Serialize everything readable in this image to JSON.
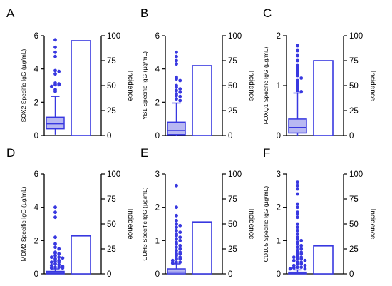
{
  "colors": {
    "accent": "#3838e0",
    "box_fill": "#b8b8f2",
    "axis": "#000000"
  },
  "chart_data": [
    {
      "type": "box-bar",
      "panel": "A",
      "ylabel": "SOX2 Specific IgG (µg/mL)",
      "y2label": "Incidence",
      "ylim": [
        0,
        6
      ],
      "yticks": [
        0,
        2,
        4,
        6
      ],
      "y2lim": [
        0,
        100
      ],
      "y2ticks": [
        0,
        25,
        50,
        75,
        100
      ],
      "box": {
        "min": 0.05,
        "q1": 0.4,
        "median": 0.7,
        "q3": 1.1,
        "max": 2.35
      },
      "outliers": [
        5.75,
        5.3,
        5.0,
        4.75,
        3.9,
        3.85,
        3.7,
        3.15,
        3.1,
        3.05,
        3.05,
        2.95,
        2.75,
        2.65
      ],
      "incidence": 95
    },
    {
      "type": "box-bar",
      "panel": "B",
      "ylabel": "YB1 Specific IgG (µg/mL)",
      "y2label": "Incidence",
      "ylim": [
        0,
        6
      ],
      "yticks": [
        0,
        2,
        4,
        6
      ],
      "y2lim": [
        0,
        100
      ],
      "y2ticks": [
        0,
        25,
        50,
        75,
        100
      ],
      "box": {
        "min": 0.0,
        "q1": 0.05,
        "median": 0.3,
        "q3": 0.8,
        "max": 1.95
      },
      "outliers": [
        5.0,
        4.75,
        4.5,
        4.3,
        3.5,
        3.4,
        3.3,
        3.0,
        2.9,
        2.8,
        2.7,
        2.6,
        2.5,
        2.4,
        2.35,
        2.2,
        2.1
      ],
      "incidence": 70
    },
    {
      "type": "box-bar",
      "panel": "C",
      "ylabel": "FOXQ1 Specific IgG (µg/mL)",
      "y2label": "Incidence",
      "ylim": [
        0,
        2
      ],
      "yticks": [
        0,
        1,
        2
      ],
      "y2lim": [
        0,
        100
      ],
      "y2ticks": [
        0,
        25,
        50,
        75,
        100
      ],
      "box": {
        "min": 0.0,
        "q1": 0.05,
        "median": 0.16,
        "q3": 0.33,
        "max": 0.85
      },
      "outliers": [
        1.8,
        1.7,
        1.6,
        1.5,
        1.4,
        1.35,
        1.3,
        1.25,
        1.2,
        1.15,
        1.1,
        1.05,
        1.0,
        0.95,
        0.9,
        0.88
      ],
      "incidence": 75
    },
    {
      "type": "box-bar",
      "panel": "D",
      "ylabel": "MDM2 Specific IgG (µg/mL)",
      "y2label": "Incidence",
      "ylim": [
        0,
        6
      ],
      "yticks": [
        0,
        2,
        4,
        6
      ],
      "y2lim": [
        0,
        100
      ],
      "y2ticks": [
        0,
        25,
        50,
        75,
        100
      ],
      "box": {
        "min": 0.0,
        "q1": 0.0,
        "median": 0.05,
        "q3": 0.15,
        "max": 0.3
      },
      "outliers": [
        4.0,
        3.7,
        3.4,
        2.2,
        1.8,
        1.6,
        1.5,
        1.3,
        1.25,
        1.2,
        1.1,
        1.0,
        1.0,
        0.95,
        0.9,
        0.8,
        0.75,
        0.7,
        0.7,
        0.6,
        0.55,
        0.5,
        0.45,
        0.4,
        0.4,
        0.35,
        0.35
      ],
      "incidence": 38
    },
    {
      "type": "box-bar",
      "panel": "E",
      "ylabel": "CDH3 Specific IgG (µg/mL)",
      "y2label": "Incidence",
      "ylim": [
        0,
        3
      ],
      "yticks": [
        0,
        1,
        2,
        3
      ],
      "y2lim": [
        0,
        100
      ],
      "y2ticks": [
        0,
        25,
        50,
        75,
        100
      ],
      "box": {
        "min": 0.0,
        "q1": 0.0,
        "median": 0.05,
        "q3": 0.15,
        "max": 0.3
      },
      "outliers": [
        2.65,
        2.0,
        1.75,
        1.6,
        1.5,
        1.45,
        1.4,
        1.3,
        1.25,
        1.2,
        1.15,
        1.1,
        1.05,
        1.0,
        0.95,
        0.9,
        0.85,
        0.8,
        0.75,
        0.7,
        0.65,
        0.6,
        0.6,
        0.55,
        0.5,
        0.45,
        0.45,
        0.4,
        0.35,
        0.35,
        0.32
      ],
      "incidence": 52
    },
    {
      "type": "box-bar",
      "panel": "F",
      "ylabel": "CD105 Specific IgG (µg/mL)",
      "y2label": "Incidence",
      "ylim": [
        0,
        3
      ],
      "yticks": [
        0,
        1,
        2,
        3
      ],
      "y2lim": [
        0,
        100
      ],
      "y2ticks": [
        0,
        25,
        50,
        75,
        100
      ],
      "box": {
        "min": 0.0,
        "q1": 0.0,
        "median": 0.02,
        "q3": 0.05,
        "max": 0.12
      },
      "outliers": [
        2.75,
        2.65,
        2.55,
        2.4,
        2.1,
        2.0,
        1.85,
        1.8,
        1.7,
        1.5,
        1.4,
        1.3,
        1.2,
        1.1,
        1.05,
        1.0,
        0.95,
        0.9,
        0.85,
        0.8,
        0.75,
        0.7,
        0.65,
        0.6,
        0.6,
        0.55,
        0.5,
        0.5,
        0.45,
        0.45,
        0.4,
        0.4,
        0.35,
        0.35,
        0.3,
        0.3,
        0.25,
        0.25,
        0.2,
        0.2,
        0.18,
        0.15,
        0.15
      ],
      "incidence": 28
    }
  ]
}
